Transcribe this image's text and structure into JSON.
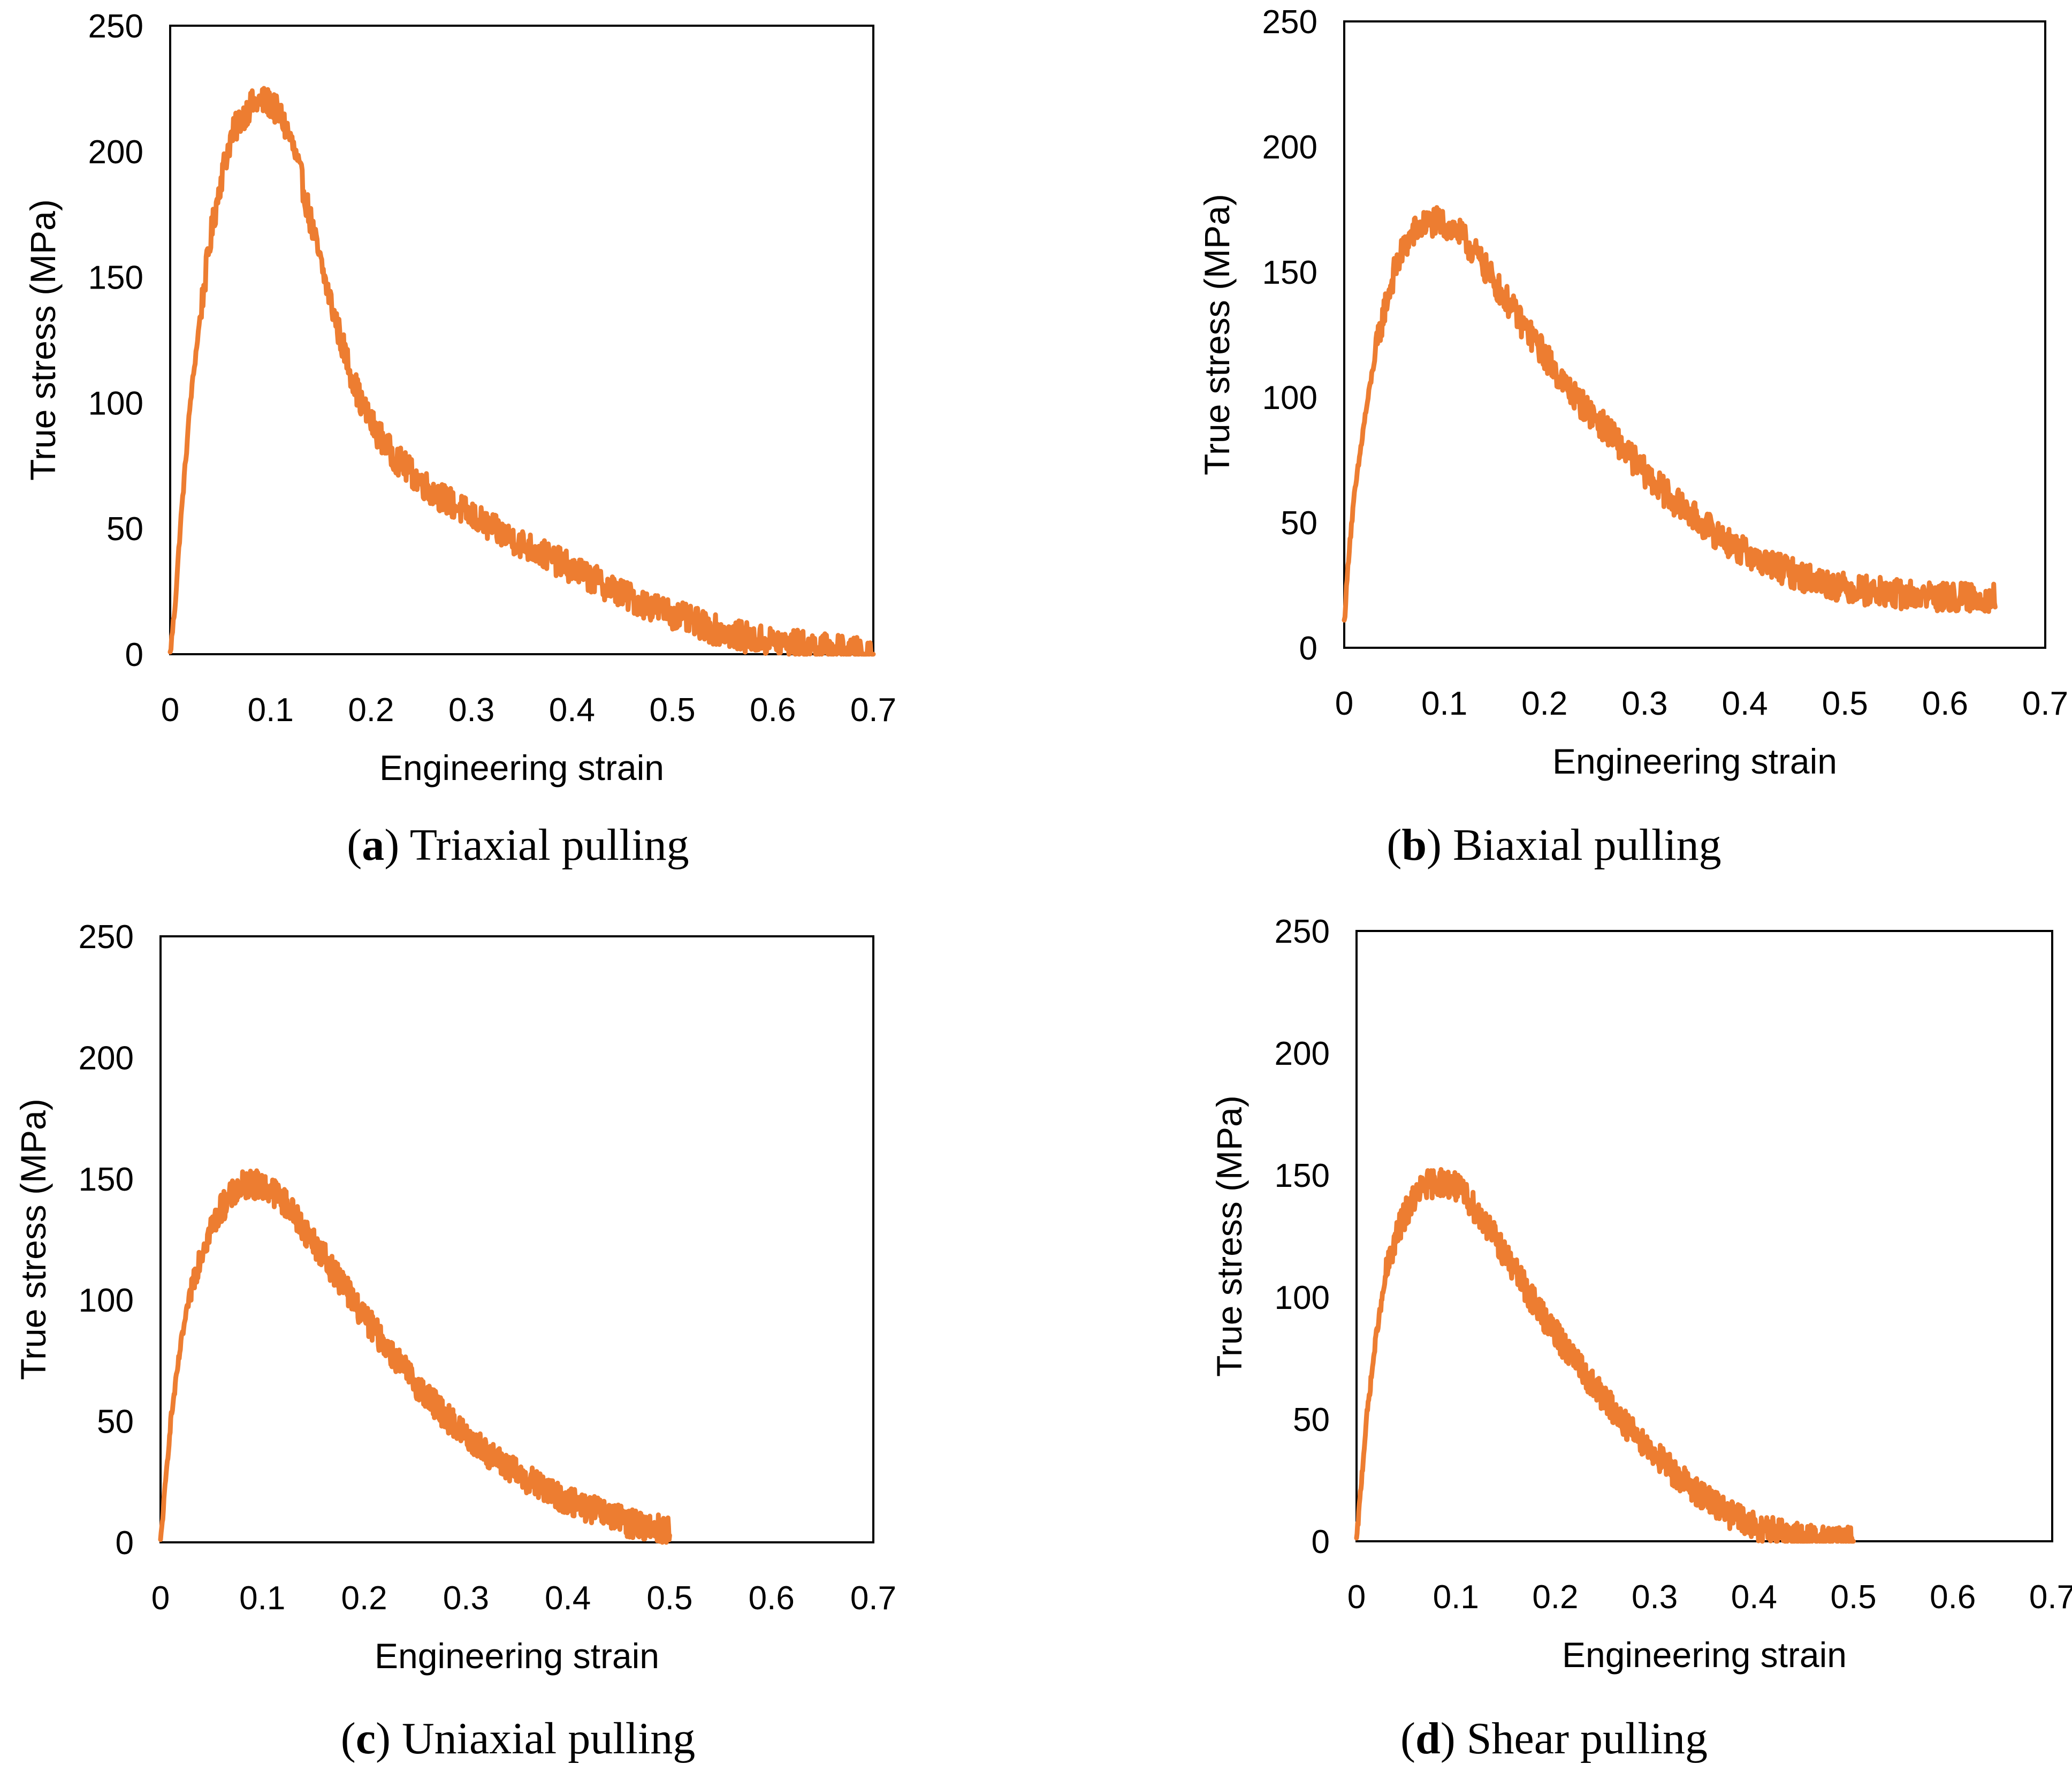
{
  "colors": {
    "series": "#ED7D31",
    "axis": "#000000"
  },
  "chart_data": [
    {
      "panel_id": "a",
      "type": "line",
      "caption_label": "a",
      "caption_text": "Triaxial pulling",
      "xlabel": "Engineering strain",
      "ylabel": "True stress (MPa)",
      "xlim": [
        0,
        0.7
      ],
      "ylim": [
        0,
        250
      ],
      "xticks": [
        "0",
        "0.1",
        "0.2",
        "0.3",
        "0.4",
        "0.5",
        "0.6",
        "0.7"
      ],
      "yticks": [
        "0",
        "50",
        "100",
        "150",
        "200",
        "250"
      ],
      "series": [
        {
          "name": "Triaxial pulling",
          "x": [
            0,
            0.005,
            0.01,
            0.02,
            0.03,
            0.04,
            0.05,
            0.06,
            0.07,
            0.08,
            0.09,
            0.1,
            0.11,
            0.12,
            0.13,
            0.14,
            0.15,
            0.16,
            0.17,
            0.18,
            0.19,
            0.2,
            0.22,
            0.24,
            0.26,
            0.28,
            0.3,
            0.32,
            0.34,
            0.36,
            0.38,
            0.4,
            0.42,
            0.44,
            0.46,
            0.48,
            0.5,
            0.52,
            0.54,
            0.56,
            0.58,
            0.6,
            0.62,
            0.64,
            0.66,
            0.68,
            0.7
          ],
          "y": [
            0,
            20,
            50,
            100,
            135,
            165,
            188,
            205,
            213,
            218,
            220,
            219,
            214,
            205,
            190,
            172,
            155,
            140,
            125,
            112,
            100,
            92,
            80,
            72,
            65,
            60,
            55,
            50,
            46,
            42,
            38,
            34,
            30,
            26,
            22,
            19,
            16,
            13,
            10,
            8,
            6,
            5,
            4,
            3,
            2,
            1,
            0
          ]
        }
      ]
    },
    {
      "panel_id": "b",
      "type": "line",
      "caption_label": "b",
      "caption_text": "Biaxial pulling",
      "xlabel": "Engineering strain",
      "ylabel": "True stress (MPa)",
      "xlim": [
        0,
        0.7
      ],
      "ylim": [
        0,
        250
      ],
      "xticks": [
        "0",
        "0.1",
        "0.2",
        "0.3",
        "0.4",
        "0.5",
        "0.6",
        "0.7"
      ],
      "yticks": [
        "0",
        "50",
        "100",
        "150",
        "200",
        "250"
      ],
      "series": [
        {
          "name": "Biaxial pulling",
          "x": [
            0,
            0.005,
            0.01,
            0.02,
            0.03,
            0.04,
            0.05,
            0.06,
            0.07,
            0.08,
            0.09,
            0.1,
            0.11,
            0.12,
            0.13,
            0.14,
            0.15,
            0.16,
            0.18,
            0.2,
            0.22,
            0.24,
            0.26,
            0.28,
            0.3,
            0.32,
            0.34,
            0.36,
            0.38,
            0.4,
            0.42,
            0.44,
            0.46,
            0.48,
            0.5,
            0.52,
            0.54,
            0.56,
            0.58,
            0.6,
            0.62,
            0.64,
            0.65
          ],
          "y": [
            10,
            40,
            60,
            90,
            115,
            135,
            150,
            160,
            166,
            169,
            170,
            169,
            167,
            163,
            158,
            152,
            146,
            140,
            128,
            117,
            105,
            96,
            88,
            79,
            70,
            62,
            55,
            49,
            43,
            38,
            34,
            31,
            28,
            26,
            24,
            23,
            22,
            21,
            21,
            20,
            20,
            20,
            20
          ]
        }
      ]
    },
    {
      "panel_id": "c",
      "type": "line",
      "caption_label": "c",
      "caption_text": "Uniaxial pulling",
      "xlabel": "Engineering strain",
      "ylabel": "True stress (MPa)",
      "xlim": [
        0,
        0.7
      ],
      "ylim": [
        0,
        250
      ],
      "xticks": [
        "0",
        "0.1",
        "0.2",
        "0.3",
        "0.4",
        "0.5",
        "0.6",
        "0.7"
      ],
      "yticks": [
        "0",
        "50",
        "100",
        "150",
        "200",
        "250"
      ],
      "series": [
        {
          "name": "Uniaxial pulling",
          "x": [
            0,
            0.01,
            0.02,
            0.03,
            0.04,
            0.05,
            0.06,
            0.07,
            0.08,
            0.09,
            0.1,
            0.11,
            0.12,
            0.13,
            0.14,
            0.15,
            0.16,
            0.18,
            0.2,
            0.22,
            0.24,
            0.26,
            0.28,
            0.3,
            0.32,
            0.34,
            0.36,
            0.38,
            0.4,
            0.42,
            0.44,
            0.46,
            0.48,
            0.5
          ],
          "y": [
            0,
            50,
            82,
            105,
            120,
            130,
            138,
            143,
            147,
            148,
            147,
            145,
            141,
            136,
            130,
            124,
            118,
            106,
            93,
            82,
            71,
            61,
            52,
            44,
            37,
            31,
            26,
            21,
            17,
            14,
            11,
            8,
            6,
            5
          ]
        }
      ]
    },
    {
      "panel_id": "d",
      "type": "line",
      "caption_label": "d",
      "caption_text": "Shear pulling",
      "xlabel": "Engineering strain",
      "ylabel": "True stress (MPa)",
      "xlim": [
        0,
        0.7
      ],
      "ylim": [
        0,
        250
      ],
      "xticks": [
        "0",
        "0.1",
        "0.2",
        "0.3",
        "0.4",
        "0.5",
        "0.6",
        "0.7"
      ],
      "yticks": [
        "0",
        "50",
        "100",
        "150",
        "200",
        "250"
      ],
      "series": [
        {
          "name": "Shear pulling",
          "x": [
            0,
            0.01,
            0.02,
            0.03,
            0.04,
            0.05,
            0.06,
            0.07,
            0.08,
            0.09,
            0.1,
            0.11,
            0.12,
            0.13,
            0.14,
            0.15,
            0.16,
            0.18,
            0.2,
            0.22,
            0.24,
            0.26,
            0.28,
            0.3,
            0.32,
            0.34,
            0.36,
            0.38,
            0.4,
            0.42,
            0.44,
            0.46,
            0.48,
            0.5
          ],
          "y": [
            0,
            50,
            85,
            110,
            125,
            135,
            142,
            146,
            147,
            147,
            145,
            141,
            136,
            130,
            124,
            117,
            110,
            97,
            85,
            74,
            63,
            53,
            44,
            36,
            28,
            21,
            15,
            10,
            6,
            4,
            2,
            1,
            0.5,
            0
          ]
        }
      ]
    }
  ]
}
